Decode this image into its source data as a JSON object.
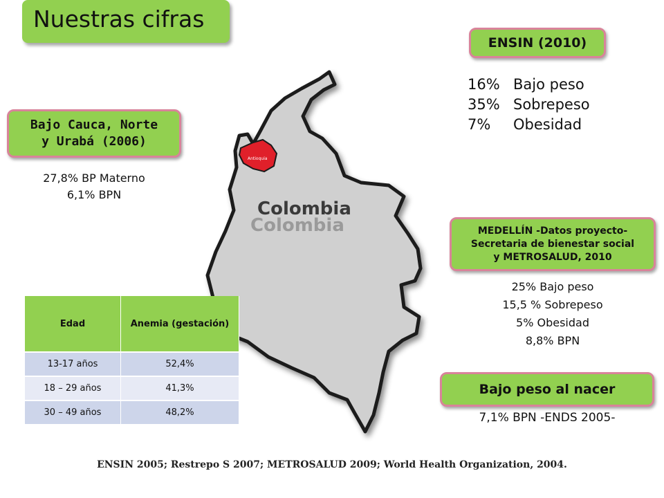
{
  "title": "Nuestras cifras",
  "ensin_box": {
    "label": "ENSIN (2010)",
    "stats": [
      {
        "value": "16%",
        "label": "Bajo peso"
      },
      {
        "value": "35%",
        "label": "Sobrepeso"
      },
      {
        "value": "7%",
        "label": "Obesidad"
      }
    ]
  },
  "bajo_cauca": {
    "label_line1": "Bajo Cauca, Norte",
    "label_line2": "y Urabá (2006)",
    "line1": "27,8% BP Materno",
    "line2": "6,1% BPN"
  },
  "map": {
    "country_label": "Colombia",
    "country_label_shadow": "Colombia",
    "region_label": "Antioquia",
    "country_color": "#d0d0d0",
    "region_color": "#e0202a"
  },
  "medellin": {
    "label_line1": "MEDELLÍN -Datos proyecto-",
    "label_line2": "Secretaria de bienestar social",
    "label_line3": "y METROSALUD, 2010",
    "stats": [
      "25% Bajo peso",
      "15,5 % Sobrepeso",
      "5% Obesidad",
      "8,8% BPN"
    ]
  },
  "bpn_box": {
    "label": "Bajo peso al nacer",
    "text": "7,1% BPN -ENDS 2005-"
  },
  "anemia_table": {
    "headers": [
      "Edad",
      "Anemia (gestación)"
    ],
    "rows": [
      [
        "13-17 años",
        "52,4%"
      ],
      [
        "18 – 29 años",
        "41,3%"
      ],
      [
        "30 – 49 años",
        "48,2%"
      ]
    ]
  },
  "footer": "ENSIN 2005;  Restrepo S  2007; METROSALUD 2009;  World Health Organization, 2004.",
  "colors": {
    "green": "#92d050",
    "pink_border": "#d9839a"
  }
}
